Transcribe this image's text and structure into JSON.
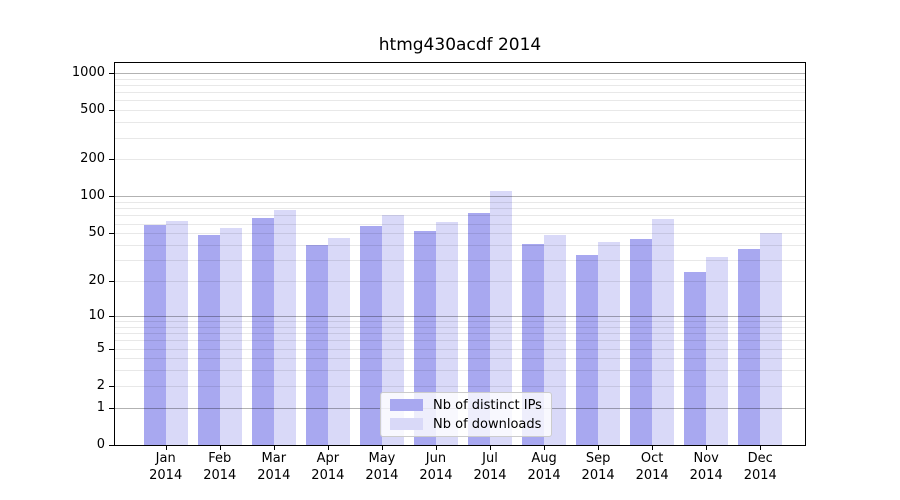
{
  "chart_data": {
    "type": "bar",
    "title": "htmg430acdf 2014",
    "categories": [
      "Jan",
      "Feb",
      "Mar",
      "Apr",
      "May",
      "Jun",
      "Jul",
      "Aug",
      "Sep",
      "Oct",
      "Nov",
      "Dec"
    ],
    "year_label": "2014",
    "series": [
      {
        "name": "Nb of distinct IPs",
        "color": "#a8a8f0",
        "values": [
          58,
          48,
          67,
          40,
          57,
          52,
          73,
          41,
          33,
          45,
          24,
          37
        ]
      },
      {
        "name": "Nb of downloads",
        "color": "#d9d9f8",
        "values": [
          63,
          55,
          78,
          46,
          70,
          62,
          110,
          48,
          42,
          65,
          32,
          50
        ]
      }
    ],
    "yscale": "log1p",
    "ylim": [
      0,
      1200
    ],
    "y_ticks": [
      1000,
      500,
      200,
      100,
      50,
      20,
      10,
      5,
      2,
      1,
      0
    ],
    "y_major_gridlines": [
      1,
      10,
      100,
      1000
    ],
    "y_minor_gridlines": [
      2,
      3,
      4,
      5,
      6,
      7,
      8,
      9,
      20,
      30,
      40,
      50,
      60,
      70,
      80,
      90,
      200,
      300,
      400,
      500,
      600,
      700,
      800,
      900
    ],
    "grid": true,
    "legend_position": "lower-center"
  },
  "colors": {
    "major_grid": "#b3b3b3",
    "minor_grid": "#e8e8e8",
    "axis": "#000000",
    "background": "#ffffff",
    "legend_border": "#cccccc"
  }
}
